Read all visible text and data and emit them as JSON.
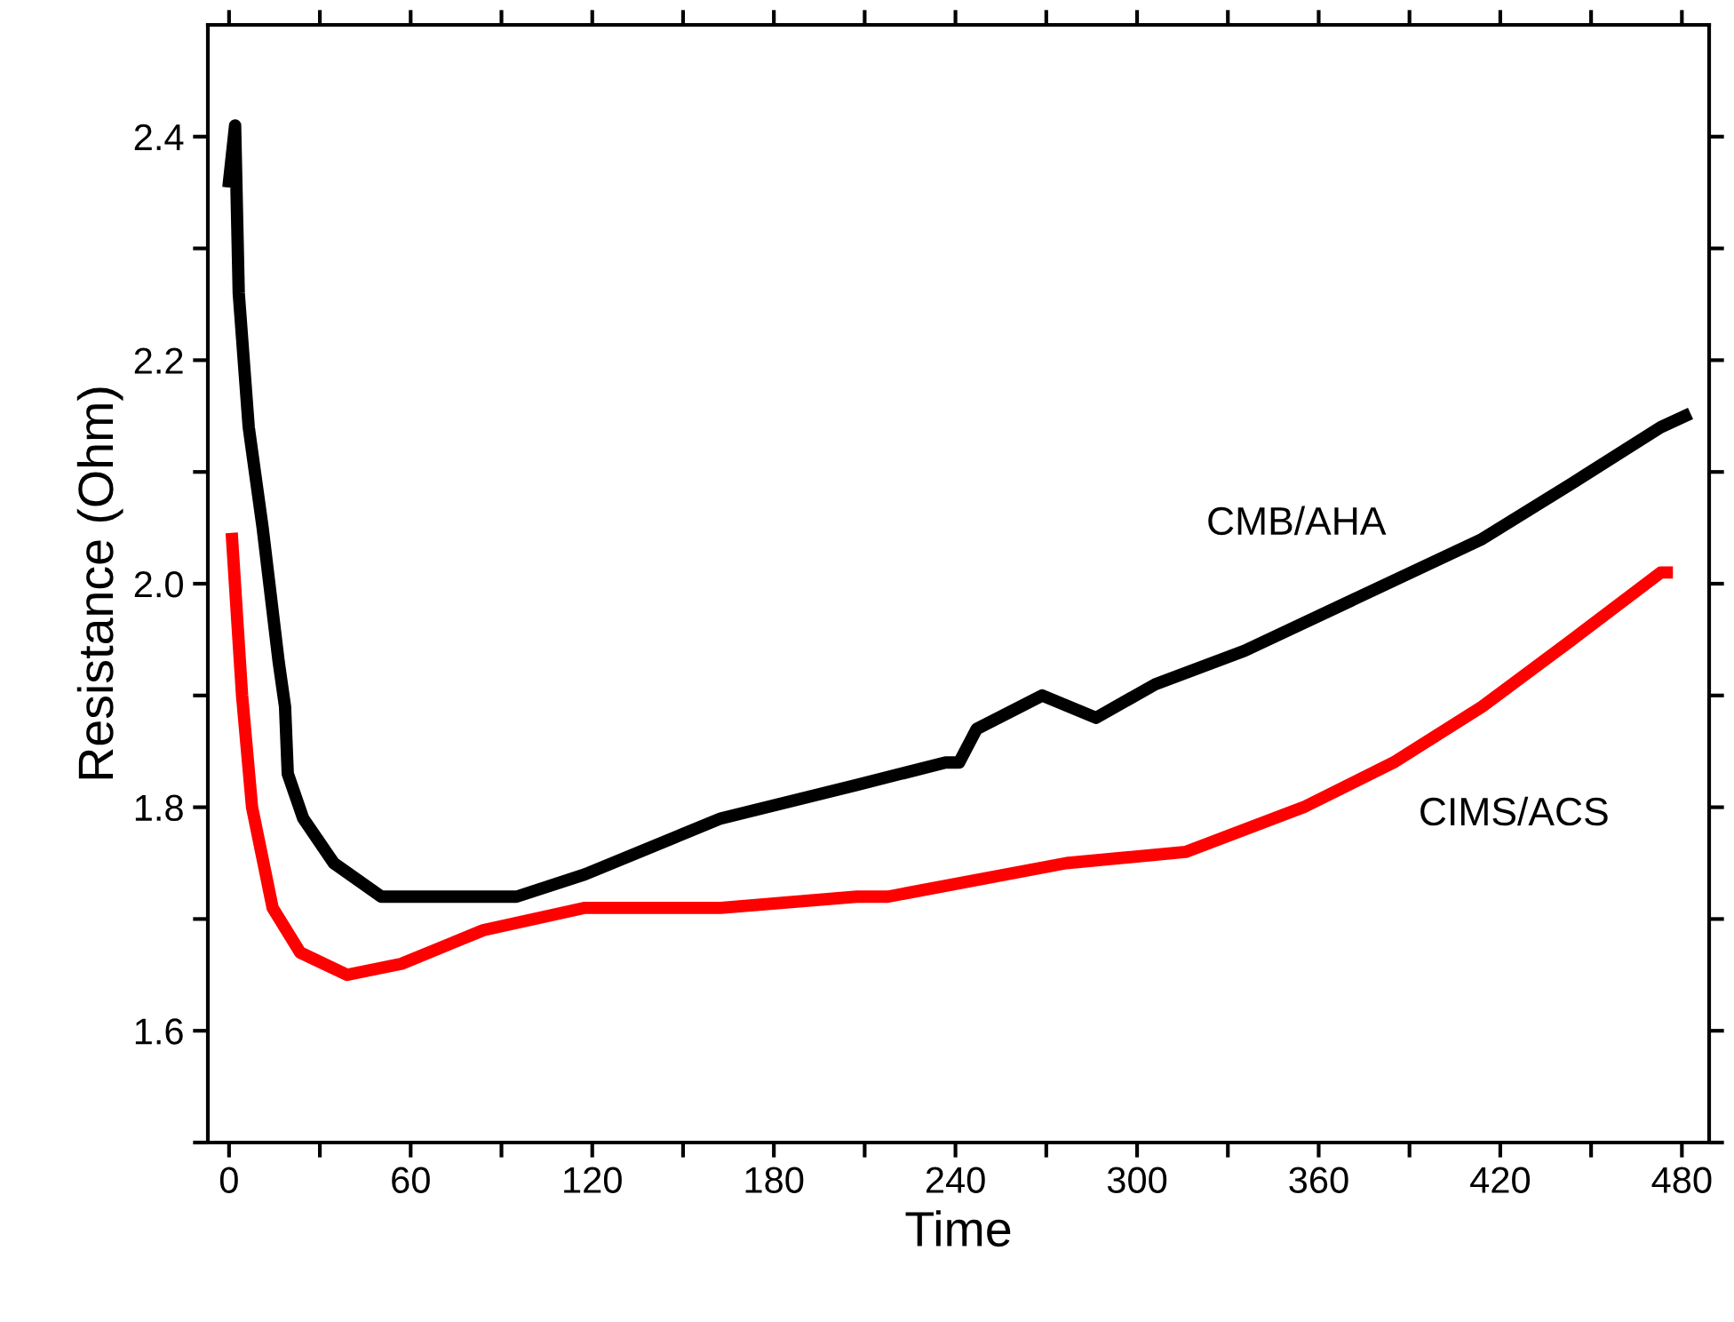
{
  "chart_data": {
    "type": "line",
    "xlabel": "Time",
    "ylabel": "Resistance (Ohm)",
    "xlim": [
      -7,
      489
    ],
    "ylim": [
      1.5,
      2.5
    ],
    "xticks": [
      0,
      {
        "value": 30,
        "label": null
      },
      60,
      {
        "value": 90,
        "label": null
      },
      120,
      {
        "value": 150,
        "label": null
      },
      180,
      {
        "value": 210,
        "label": null
      },
      240,
      {
        "value": 270,
        "label": null
      },
      300,
      {
        "value": 330,
        "label": null
      },
      360,
      {
        "value": 390,
        "label": null
      },
      420,
      {
        "value": 450,
        "label": null
      },
      480
    ],
    "yticks": [
      {
        "value": 1.5,
        "label": null
      },
      1.6,
      {
        "value": 1.7,
        "label": null
      },
      1.8,
      {
        "value": 1.9,
        "label": null
      },
      {
        "value": 2.0,
        "label": "2.0"
      },
      {
        "value": 2.1,
        "label": null
      },
      2.2,
      {
        "value": 2.3,
        "label": null
      },
      2.4
    ],
    "grid": false,
    "legend": false,
    "marker": "none",
    "line_style": "solid",
    "series": [
      {
        "name": "CMB/AHA",
        "color": "#000000",
        "x": [
          0,
          2,
          3.2,
          6.5,
          11.1,
          16.4,
          18.5,
          19.4,
          24.5,
          34.6,
          50.3,
          77.3,
          95,
          117.6,
          162.5,
          207.4,
          236.7,
          241.2,
          247,
          268.7,
          286.4,
          306,
          335.5,
          374.8,
          414,
          443.8,
          473,
          481
        ],
        "values": [
          2.36,
          2.41,
          2.26,
          2.14,
          2.05,
          1.93,
          1.89,
          1.83,
          1.79,
          1.75,
          1.72,
          1.72,
          1.72,
          1.74,
          1.79,
          1.82,
          1.84,
          1.84,
          1.87,
          1.9,
          1.88,
          1.91,
          1.94,
          1.99,
          2.04,
          2.09,
          2.14,
          2.15
        ]
      },
      {
        "name": "CIMS/ACS",
        "color": "#ff0000",
        "x": [
          1,
          4.3,
          7.6,
          14.4,
          23.5,
          39,
          57,
          84,
          117.6,
          162.5,
          207.4,
          217.7,
          276.6,
          316,
          355,
          384.7,
          414,
          443.8,
          473,
          475
        ],
        "values": [
          2.04,
          1.9,
          1.8,
          1.71,
          1.67,
          1.65,
          1.66,
          1.69,
          1.71,
          1.71,
          1.72,
          1.72,
          1.75,
          1.76,
          1.8,
          1.84,
          1.89,
          1.95,
          2.01,
          2.01
        ]
      }
    ]
  }
}
